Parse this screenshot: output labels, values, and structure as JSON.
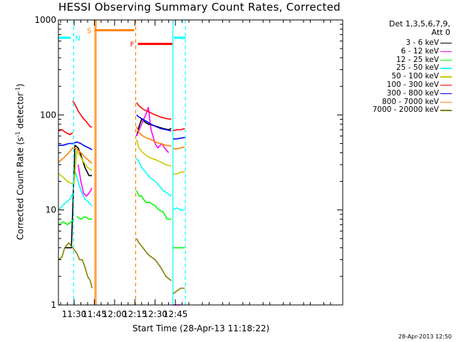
{
  "chart_data": {
    "type": "line",
    "title": "HESSI Observing Summary Count Rates, Corrected",
    "xlabel": "Start Time (28-Apr-13 11:18:22)",
    "ylabel_main": "Corrected Count Rate (s",
    "ylabel_exp1": "-1",
    "ylabel_mid": " detector",
    "ylabel_exp2": "-1",
    "ylabel_end": ")",
    "yscale": "log",
    "ylim": [
      1,
      1000
    ],
    "xlim_minutes": [
      1098.37,
      1309.0
    ],
    "yticks": [
      {
        "value": 1,
        "label": "1"
      },
      {
        "value": 10,
        "label": "10"
      },
      {
        "value": 100,
        "label": "100"
      },
      {
        "value": 1000,
        "label": "1000"
      }
    ],
    "xticks": [
      {
        "minute": 1110,
        "label": "11:30"
      },
      {
        "minute": 1125,
        "label": "11:45"
      },
      {
        "minute": 1140,
        "label": "12:00"
      },
      {
        "minute": 1155,
        "label": "12:15"
      },
      {
        "minute": 1170,
        "label": "12:30"
      },
      {
        "minute": 1185,
        "label": "12:45"
      }
    ],
    "legend_header": [
      "Det 1,3,5,6,7,9,",
      "Att 0"
    ],
    "series": [
      {
        "name": "3 - 6 keV",
        "color": "#000000",
        "segments": [
          {
            "x": [
              1103.0,
              1108.0,
              1110.6,
              1113.0,
              1115.0,
              1118.0,
              1121.0,
              1123.3
            ],
            "y": [
              4.0,
              4.0,
              48,
              45,
              38,
              28,
              23,
              23
            ]
          },
          {
            "x": [
              1156.3,
              1158.0,
              1160.0,
              1162.0,
              1165.0,
              1168.0,
              1172.0,
              1176.0,
              1180.0,
              1182.0
            ],
            "y": [
              60,
              75,
              90,
              85,
              80,
              78,
              75,
              72,
              70,
              72
            ]
          }
        ]
      },
      {
        "name": "6 - 12 keV",
        "color": "#ff00ff",
        "segments": [
          {
            "x": [
              1098.6,
              1099.5
            ],
            "y": [
              1.0,
              1.0
            ]
          },
          {
            "x": [
              1113.0,
              1115.0,
              1117.0,
              1119.0,
              1121.0,
              1123.3
            ],
            "y": [
              30,
              20,
              15,
              14,
              15,
              17
            ]
          },
          {
            "x": [
              1156.3,
              1160.0,
              1163.0,
              1165.0,
              1167.0,
              1170.0,
              1172.0,
              1175.0,
              1177.0,
              1180.0
            ],
            "y": [
              60,
              80,
              100,
              120,
              70,
              50,
              45,
              50,
              45,
              40
            ]
          },
          {
            "x": [
              1183.0,
              1185.0,
              1187.0,
              1189.0
            ],
            "y": [
              1.0,
              1.0,
              1.0,
              1.0
            ]
          }
        ]
      },
      {
        "name": "12 - 25 keV",
        "color": "#00ff00",
        "segments": [
          {
            "x": [
              1098.6,
              1102.0,
              1105.0,
              1108.0,
              1110.0
            ],
            "y": [
              7,
              7.5,
              7,
              7.5,
              8
            ]
          },
          {
            "x": [
              1112.0,
              1115.0,
              1118.0,
              1121.0,
              1123.3
            ],
            "y": [
              8.5,
              8,
              8.5,
              8,
              8
            ]
          },
          {
            "x": [
              1156.3,
              1158.0,
              1160.0,
              1163.0,
              1166.0,
              1170.0,
              1173.0,
              1176.0,
              1179.0,
              1182.0
            ],
            "y": [
              16,
              14,
              14,
              12,
              12,
              11,
              10,
              9.5,
              8,
              8
            ]
          },
          {
            "x": [
              1183.0,
              1186.0,
              1189.0,
              1192.0
            ],
            "y": [
              4,
              4,
              4,
              4
            ]
          }
        ]
      },
      {
        "name": "25 - 50 keV",
        "color": "#00ffff",
        "segments": [
          {
            "x": [
              1098.6,
              1101.0,
              1104.0,
              1107.0,
              1109.0
            ],
            "y": [
              10,
              11,
              12,
              13,
              15
            ]
          },
          {
            "x": [
              1109.0,
              1111.0,
              1113.0,
              1115.0,
              1118.0,
              1121.0,
              1123.3
            ],
            "y": [
              18,
              25,
              20,
              16,
              13,
              12,
              11
            ]
          },
          {
            "x": [
              1156.3,
              1158.0,
              1160.0,
              1163.0,
              1166.0,
              1170.0,
              1173.0,
              1176.0,
              1179.0,
              1182.0
            ],
            "y": [
              35,
              32,
              28,
              25,
              22,
              20,
              18,
              16,
              15,
              14
            ]
          },
          {
            "x": [
              1183.0,
              1186.0,
              1189.0,
              1192.0
            ],
            "y": [
              10,
              10.5,
              10,
              10
            ]
          }
        ]
      },
      {
        "name": "50 - 100 keV",
        "color": "#c8c800",
        "segments": [
          {
            "x": [
              1098.6,
              1102.0,
              1105.0,
              1108.0,
              1110.0,
              1112.0,
              1114.0,
              1117.0,
              1120.0,
              1123.3
            ],
            "y": [
              24,
              22,
              20,
              19,
              19,
              42,
              38,
              32,
              28,
              26
            ]
          },
          {
            "x": [
              1156.3,
              1158.0,
              1161.0,
              1164.0,
              1167.0,
              1170.0,
              1174.0,
              1178.0,
              1182.0
            ],
            "y": [
              55,
              45,
              40,
              37,
              35,
              34,
              32,
              30,
              29
            ]
          },
          {
            "x": [
              1183.0,
              1186.0,
              1189.0,
              1192.0
            ],
            "y": [
              24,
              24,
              25,
              25
            ]
          }
        ]
      },
      {
        "name": "100 - 300 keV",
        "color": "#ff0000",
        "segments": [
          {
            "x": [
              1098.6,
              1101.0,
              1104.0,
              1107.0,
              1109.0
            ],
            "y": [
              68,
              70,
              65,
              62,
              65
            ]
          },
          {
            "x": [
              1109.0,
              1110.5,
              1113.0,
              1116.0,
              1119.0,
              1122.0,
              1123.3
            ],
            "y": [
              140,
              130,
              110,
              95,
              85,
              75,
              75
            ]
          },
          {
            "x": [
              1156.3,
              1158.0,
              1161.0,
              1164.0,
              1167.0,
              1170.0,
              1174.0,
              1178.0,
              1182.0
            ],
            "y": [
              135,
              125,
              115,
              110,
              105,
              100,
              95,
              92,
              90
            ]
          },
          {
            "x": [
              1183.0,
              1186.0,
              1189.0,
              1192.0
            ],
            "y": [
              68,
              70,
              70,
              72
            ]
          }
        ]
      },
      {
        "name": "300 - 800 keV",
        "color": "#0000ff",
        "segments": [
          {
            "x": [
              1098.6,
              1102.0,
              1106.0,
              1109.0,
              1112.0,
              1115.0,
              1118.0,
              1121.0,
              1123.3
            ],
            "y": [
              48,
              48,
              50,
              50,
              52,
              50,
              47,
              45,
              43
            ]
          },
          {
            "x": [
              1156.3,
              1158.0,
              1161.0,
              1164.0,
              1167.0,
              1170.0,
              1174.0,
              1178.0,
              1182.0
            ],
            "y": [
              100,
              95,
              90,
              85,
              80,
              76,
              72,
              70,
              68
            ]
          },
          {
            "x": [
              1183.0,
              1186.0,
              1189.0,
              1192.0
            ],
            "y": [
              56,
              56,
              57,
              58
            ]
          }
        ]
      },
      {
        "name": "800 - 7000 keV",
        "color": "#ff8000",
        "segments": [
          {
            "x": [
              1098.6,
              1102.0,
              1106.0,
              1109.0,
              1112.0,
              1115.0,
              1118.0,
              1121.0,
              1123.3
            ],
            "y": [
              32,
              35,
              40,
              45,
              44,
              40,
              36,
              33,
              31
            ]
          },
          {
            "x": [
              1156.3,
              1158.0,
              1161.0,
              1164.0,
              1167.0,
              1170.0,
              1174.0,
              1178.0,
              1182.0
            ],
            "y": [
              75,
              65,
              60,
              57,
              55,
              52,
              50,
              48,
              47
            ]
          },
          {
            "x": [
              1183.0,
              1186.0,
              1189.0,
              1192.0
            ],
            "y": [
              44,
              44,
              45,
              46
            ]
          }
        ]
      },
      {
        "name": "7000 - 20000 keV",
        "color": "#808000",
        "segments": [
          {
            "x": [
              1098.6,
              1101.0,
              1103.0,
              1106.0,
              1109.0,
              1112.0,
              1114.0,
              1116.0,
              1118.0,
              1120.0,
              1122.0,
              1123.3
            ],
            "y": [
              3.0,
              3.2,
              4.0,
              4.5,
              4.0,
              3.5,
              3.0,
              3.0,
              2.5,
              2.0,
              1.8,
              1.5
            ]
          },
          {
            "x": [
              1156.3,
              1158.0,
              1161.0,
              1164.0,
              1167.0,
              1170.0,
              1174.0,
              1178.0,
              1182.0
            ],
            "y": [
              5.0,
              4.5,
              4.0,
              3.5,
              3.2,
              3.0,
              2.5,
              2.0,
              1.8
            ]
          },
          {
            "x": [
              1183.0,
              1186.0,
              1189.0,
              1192.0
            ],
            "y": [
              1.3,
              1.4,
              1.5,
              1.5
            ]
          }
        ]
      }
    ],
    "state_bars": [
      {
        "label": "N",
        "color": "#00ffff",
        "y_value": 650,
        "ranges": [
          [
            1098.6,
            1107.5
          ],
          [
            1184.0,
            1192.5
          ]
        ]
      },
      {
        "label": "S",
        "color": "#ff8000",
        "y_value": 780,
        "ranges": [
          [
            1125.5,
            1154.5
          ]
        ]
      },
      {
        "label": "F",
        "color": "#ff0000",
        "y_value": 560,
        "ranges": [
          [
            1157.2,
            1182.7
          ]
        ]
      }
    ],
    "vertical_lines": [
      {
        "minute": 1109.6,
        "color": "#00ffff",
        "style": "dashed"
      },
      {
        "minute": 1125.4,
        "color": "#ff8000",
        "style": "solid"
      },
      {
        "minute": 1126.3,
        "color": "#ff8000",
        "style": "solid"
      },
      {
        "minute": 1155.6,
        "color": "#ff8000",
        "style": "dashed"
      },
      {
        "minute": 1183.2,
        "color": "#00ffff",
        "style": "solid"
      },
      {
        "minute": 1192.4,
        "color": "#00ffff",
        "style": "dashed"
      }
    ]
  },
  "footer": {
    "stamp": "28-Apr-2013 12:50"
  }
}
